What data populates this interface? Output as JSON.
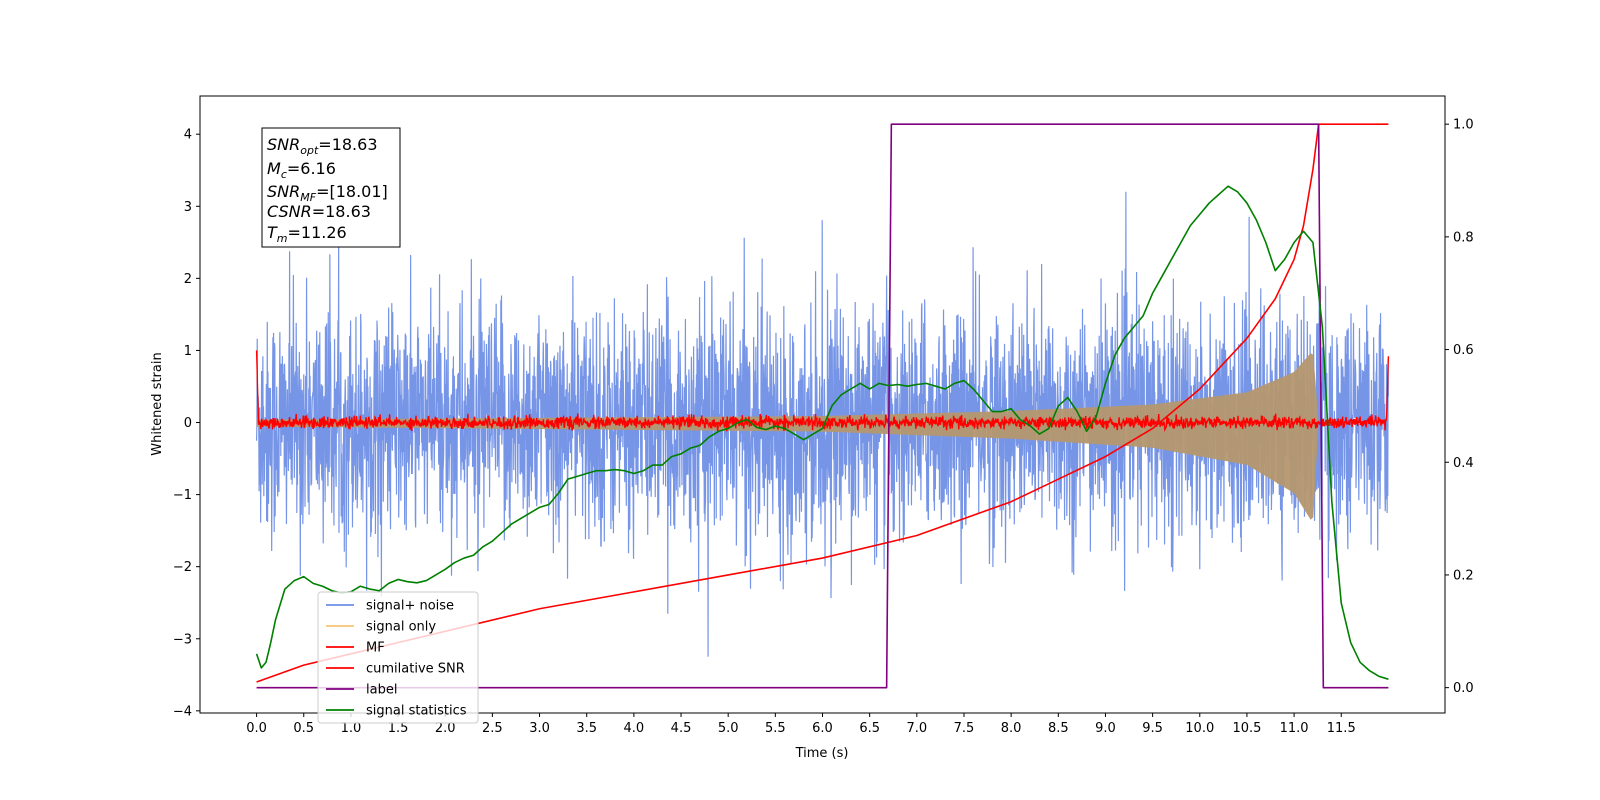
{
  "chart_data": {
    "type": "line",
    "xlabel": "Time (s)",
    "ylabel": "Whitened strain",
    "xlim": [
      -0.6,
      12.6
    ],
    "ylim": [
      -4.03,
      4.53
    ],
    "ylim_right": [
      -0.045,
      1.05
    ],
    "x_ticks": [
      "0.0",
      "0.5",
      "1.0",
      "1.5",
      "2.0",
      "2.5",
      "3.0",
      "3.5",
      "4.0",
      "4.5",
      "5.0",
      "5.5",
      "6.0",
      "6.5",
      "7.0",
      "7.5",
      "8.0",
      "8.5",
      "9.0",
      "9.5",
      "10.0",
      "10.5",
      "11.0",
      "11.5"
    ],
    "y_ticks": [
      "−4",
      "−3",
      "−2",
      "−1",
      "0",
      "1",
      "2",
      "3",
      "4"
    ],
    "y_ticks_right": [
      "0.0",
      "0.2",
      "0.4",
      "0.6",
      "0.8",
      "1.0"
    ],
    "info_box": {
      "snr_opt": {
        "base": "SNR",
        "sub": "opt",
        "value": "=18.63"
      },
      "mc": {
        "base": "M",
        "sub": "c",
        "value": "=6.16"
      },
      "snr_mf": {
        "base": "SNR",
        "sub": "MF",
        "value": "=[18.01]"
      },
      "csnr": {
        "base": "CSNR",
        "sub": "",
        "value": "=18.63"
      },
      "tm": {
        "base": "T",
        "sub": "m",
        "value": "=11.26"
      }
    },
    "legend": [
      {
        "label": "signal+ noise",
        "color": "#6f8fe6"
      },
      {
        "label": "signal only",
        "color": "#f5c673"
      },
      {
        "label": "MF",
        "color": "#ff0000"
      },
      {
        "label": "cumilative SNR",
        "color": "#ff0000"
      },
      {
        "label": "label",
        "color": "#800080"
      },
      {
        "label": "signal statistics",
        "color": "#008000"
      }
    ],
    "series": [
      {
        "name": "signal+ noise",
        "axis": "left",
        "color": "#6f8fe6",
        "kind": "noise_band",
        "x_range": [
          0.0,
          12.0
        ],
        "typical_range": [
          -1.5,
          1.8
        ],
        "extreme_range": [
          -3.65,
          4.15
        ]
      },
      {
        "name": "signal only",
        "axis": "left",
        "color": "#f5c673",
        "kind": "chirp_envelope",
        "x_range": [
          0.0,
          11.26
        ],
        "envelope": [
          {
            "x": 0.0,
            "amp": 0.04
          },
          {
            "x": 6.0,
            "amp": 0.09
          },
          {
            "x": 8.0,
            "amp": 0.16
          },
          {
            "x": 9.5,
            "amp": 0.25
          },
          {
            "x": 10.5,
            "amp": 0.42
          },
          {
            "x": 11.0,
            "amp": 0.7
          },
          {
            "x": 11.2,
            "amp": 1.0
          },
          {
            "x": 11.26,
            "amp": 0.0
          }
        ]
      },
      {
        "name": "MF",
        "axis": "left",
        "color": "#ff0000",
        "kind": "noisy_line",
        "x_range": [
          0.0,
          12.0
        ],
        "center": 0.0,
        "amplitude": 0.07,
        "edges": [
          {
            "x": 0.0,
            "y": 1.0
          },
          {
            "x": 12.0,
            "y": 0.92
          }
        ]
      },
      {
        "name": "cumilative SNR",
        "axis": "right",
        "color": "#ff0000",
        "x": [
          0.0,
          0.5,
          1.0,
          2.0,
          3.0,
          4.0,
          5.0,
          6.0,
          7.0,
          8.0,
          8.5,
          9.0,
          9.5,
          10.0,
          10.5,
          10.8,
          11.0,
          11.1,
          11.2,
          11.26,
          11.3,
          12.0
        ],
        "y": [
          0.01,
          0.04,
          0.06,
          0.1,
          0.14,
          0.17,
          0.2,
          0.23,
          0.27,
          0.33,
          0.37,
          0.41,
          0.46,
          0.53,
          0.62,
          0.69,
          0.76,
          0.82,
          0.92,
          1.0,
          1.0,
          1.0
        ]
      },
      {
        "name": "label",
        "axis": "right",
        "color": "#800080",
        "x": [
          0.0,
          6.68,
          6.73,
          11.26,
          11.31,
          12.0
        ],
        "y": [
          0.0,
          0.0,
          1.0,
          1.0,
          0.0,
          0.0
        ]
      },
      {
        "name": "signal statistics",
        "axis": "right",
        "color": "#008000",
        "x": [
          0.0,
          0.05,
          0.1,
          0.15,
          0.2,
          0.3,
          0.4,
          0.5,
          0.6,
          0.7,
          0.8,
          0.9,
          1.0,
          1.1,
          1.2,
          1.3,
          1.4,
          1.5,
          1.6,
          1.7,
          1.8,
          1.9,
          2.0,
          2.1,
          2.2,
          2.3,
          2.4,
          2.5,
          2.6,
          2.7,
          2.8,
          2.9,
          3.0,
          3.1,
          3.2,
          3.3,
          3.4,
          3.5,
          3.6,
          3.7,
          3.8,
          3.9,
          4.0,
          4.1,
          4.2,
          4.3,
          4.4,
          4.5,
          4.6,
          4.7,
          4.8,
          4.9,
          5.0,
          5.1,
          5.2,
          5.3,
          5.4,
          5.5,
          5.6,
          5.7,
          5.8,
          5.9,
          6.0,
          6.1,
          6.2,
          6.3,
          6.4,
          6.5,
          6.6,
          6.7,
          6.8,
          6.9,
          7.0,
          7.1,
          7.2,
          7.3,
          7.4,
          7.5,
          7.6,
          7.7,
          7.8,
          7.9,
          8.0,
          8.1,
          8.2,
          8.3,
          8.4,
          8.5,
          8.6,
          8.7,
          8.8,
          8.9,
          9.0,
          9.1,
          9.2,
          9.3,
          9.4,
          9.5,
          9.6,
          9.7,
          9.8,
          9.9,
          10.0,
          10.1,
          10.2,
          10.3,
          10.4,
          10.5,
          10.6,
          10.7,
          10.8,
          10.9,
          11.0,
          11.1,
          11.2,
          11.3,
          11.4,
          11.5,
          11.6,
          11.7,
          11.8,
          11.9,
          12.0
        ],
        "y": [
          0.06,
          0.035,
          0.045,
          0.08,
          0.12,
          0.175,
          0.19,
          0.197,
          0.185,
          0.18,
          0.172,
          0.168,
          0.17,
          0.18,
          0.175,
          0.172,
          0.185,
          0.192,
          0.188,
          0.186,
          0.19,
          0.2,
          0.21,
          0.222,
          0.23,
          0.235,
          0.25,
          0.26,
          0.275,
          0.29,
          0.3,
          0.31,
          0.32,
          0.325,
          0.345,
          0.37,
          0.375,
          0.38,
          0.385,
          0.385,
          0.387,
          0.385,
          0.38,
          0.385,
          0.395,
          0.395,
          0.41,
          0.415,
          0.425,
          0.43,
          0.445,
          0.455,
          0.46,
          0.47,
          0.476,
          0.462,
          0.458,
          0.464,
          0.46,
          0.45,
          0.44,
          0.45,
          0.46,
          0.5,
          0.52,
          0.53,
          0.54,
          0.53,
          0.54,
          0.536,
          0.538,
          0.535,
          0.538,
          0.54,
          0.535,
          0.53,
          0.54,
          0.545,
          0.53,
          0.51,
          0.49,
          0.49,
          0.495,
          0.475,
          0.465,
          0.45,
          0.46,
          0.5,
          0.515,
          0.49,
          0.455,
          0.48,
          0.54,
          0.59,
          0.62,
          0.64,
          0.66,
          0.7,
          0.73,
          0.76,
          0.79,
          0.82,
          0.84,
          0.86,
          0.875,
          0.89,
          0.88,
          0.86,
          0.83,
          0.79,
          0.74,
          0.76,
          0.79,
          0.81,
          0.79,
          0.64,
          0.33,
          0.15,
          0.08,
          0.045,
          0.03,
          0.02,
          0.015
        ]
      }
    ],
    "grid": false,
    "legend_position": "lower-left"
  }
}
